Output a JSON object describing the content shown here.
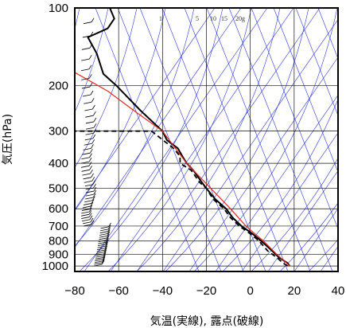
{
  "chart_data": {
    "type": "line",
    "title": "",
    "xlabel": "気温(実線), 露点(破線)",
    "ylabel": "気圧(hPa)",
    "xlim": [
      -80,
      40
    ],
    "ylim": [
      1050,
      100
    ],
    "y_scale": "log",
    "grid": true,
    "x_ticks": [
      -80,
      -60,
      -40,
      -20,
      0,
      20,
      40
    ],
    "y_ticks": [
      100,
      200,
      300,
      400,
      500,
      600,
      700,
      800,
      900,
      1000
    ],
    "mixing_ratio_labels": [
      "1",
      "5",
      "10",
      "15",
      "20g"
    ],
    "colors": {
      "temperature": "#000000",
      "dewpoint": "#000000",
      "parcel": "#e8281e",
      "guides": "#2b36d9",
      "grid": "#111111"
    },
    "series": [
      {
        "name": "",
        "style": "solid",
        "points": [
          [
            18,
            1000
          ],
          [
            17,
            975
          ],
          [
            13,
            925
          ],
          [
            10,
            875
          ],
          [
            5,
            800
          ],
          [
            1,
            750
          ],
          [
            -4,
            700
          ],
          [
            -8,
            650
          ],
          [
            -11,
            600
          ],
          [
            -16,
            550
          ],
          [
            -20,
            500
          ],
          [
            -22,
            475
          ],
          [
            -26,
            425
          ],
          [
            -29,
            400
          ],
          [
            -31,
            375
          ],
          [
            -33,
            350
          ],
          [
            -38,
            325
          ],
          [
            -40,
            300
          ],
          [
            -50,
            250
          ],
          [
            -61,
            200
          ],
          [
            -67,
            180
          ],
          [
            -70,
            150
          ],
          [
            -74,
            130
          ],
          [
            -65,
            120
          ],
          [
            -62,
            110
          ],
          [
            -64,
            100
          ]
        ]
      },
      {
        "name": "",
        "style": "dashed",
        "points": [
          [
            17,
            1000
          ],
          [
            15,
            975
          ],
          [
            12,
            925
          ],
          [
            8,
            875
          ],
          [
            4,
            800
          ],
          [
            0,
            750
          ],
          [
            -5,
            700
          ],
          [
            -9,
            650
          ],
          [
            -12,
            600
          ],
          [
            -17,
            550
          ],
          [
            -20,
            500
          ],
          [
            -23,
            475
          ],
          [
            -27,
            425
          ],
          [
            -32,
            400
          ],
          [
            -32,
            375
          ],
          [
            -35,
            350
          ],
          [
            -45,
            300
          ],
          [
            -81,
            300
          ]
        ]
      },
      {
        "name": "",
        "style": "solid-red",
        "points": [
          [
            18,
            1000
          ],
          [
            12,
            900
          ],
          [
            6,
            800
          ],
          [
            -2,
            700
          ],
          [
            -9,
            600
          ],
          [
            -18,
            500
          ],
          [
            -29,
            400
          ],
          [
            -40,
            300
          ],
          [
            -53,
            250
          ],
          [
            -65,
            210
          ],
          [
            -84,
            170
          ]
        ]
      }
    ]
  }
}
